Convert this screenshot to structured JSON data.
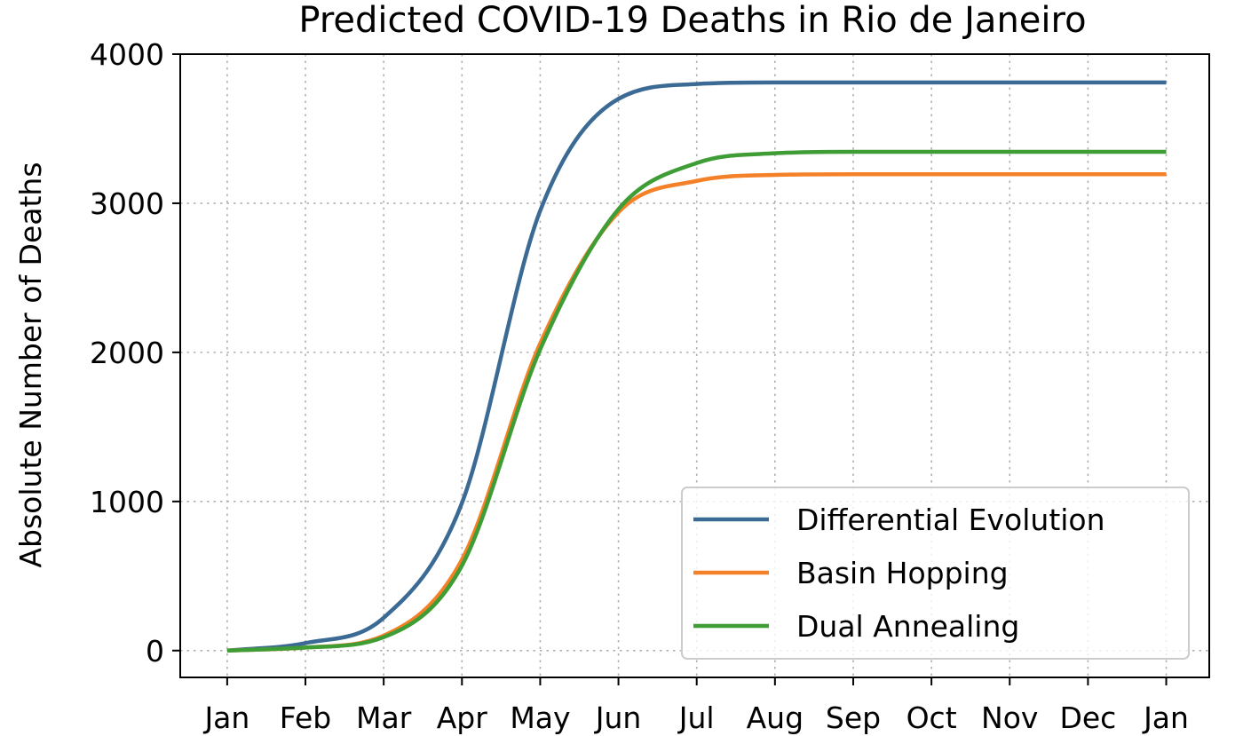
{
  "chart_data": {
    "type": "line",
    "title": "Predicted COVID-19 Deaths in Rio de Janeiro",
    "xlabel": "",
    "ylabel": "Absolute Number of Deaths",
    "x_tick_labels": [
      "Jan",
      "Feb",
      "Mar",
      "Apr",
      "May",
      "Jun",
      "Jul",
      "Aug",
      "Sep",
      "Oct",
      "Nov",
      "Dec",
      "Jan"
    ],
    "y_tick_labels": [
      "0",
      "1000",
      "2000",
      "3000",
      "4000"
    ],
    "ylim": [
      -180,
      4000
    ],
    "xlim": [
      -0.6,
      12.55
    ],
    "grid": true,
    "legend_position": "lower-right",
    "x": [
      "Jan",
      "Feb",
      "Mar",
      "Apr",
      "May",
      "Jun",
      "Jul",
      "Aug",
      "Sep",
      "Oct",
      "Nov",
      "Dec",
      "Jan"
    ],
    "series": [
      {
        "name": "Differential Evolution",
        "color": "#3b6b94",
        "values": [
          0,
          50,
          220,
          990,
          2950,
          3700,
          3800,
          3810,
          3810,
          3810,
          3810,
          3810,
          3810
        ]
      },
      {
        "name": "Basin Hopping",
        "color": "#f48128",
        "values": [
          0,
          20,
          100,
          610,
          2060,
          2940,
          3150,
          3190,
          3195,
          3195,
          3195,
          3195,
          3195
        ]
      },
      {
        "name": "Dual Annealing",
        "color": "#3f9d35",
        "values": [
          0,
          20,
          90,
          570,
          2020,
          2960,
          3270,
          3335,
          3345,
          3345,
          3345,
          3345,
          3345
        ]
      }
    ]
  }
}
